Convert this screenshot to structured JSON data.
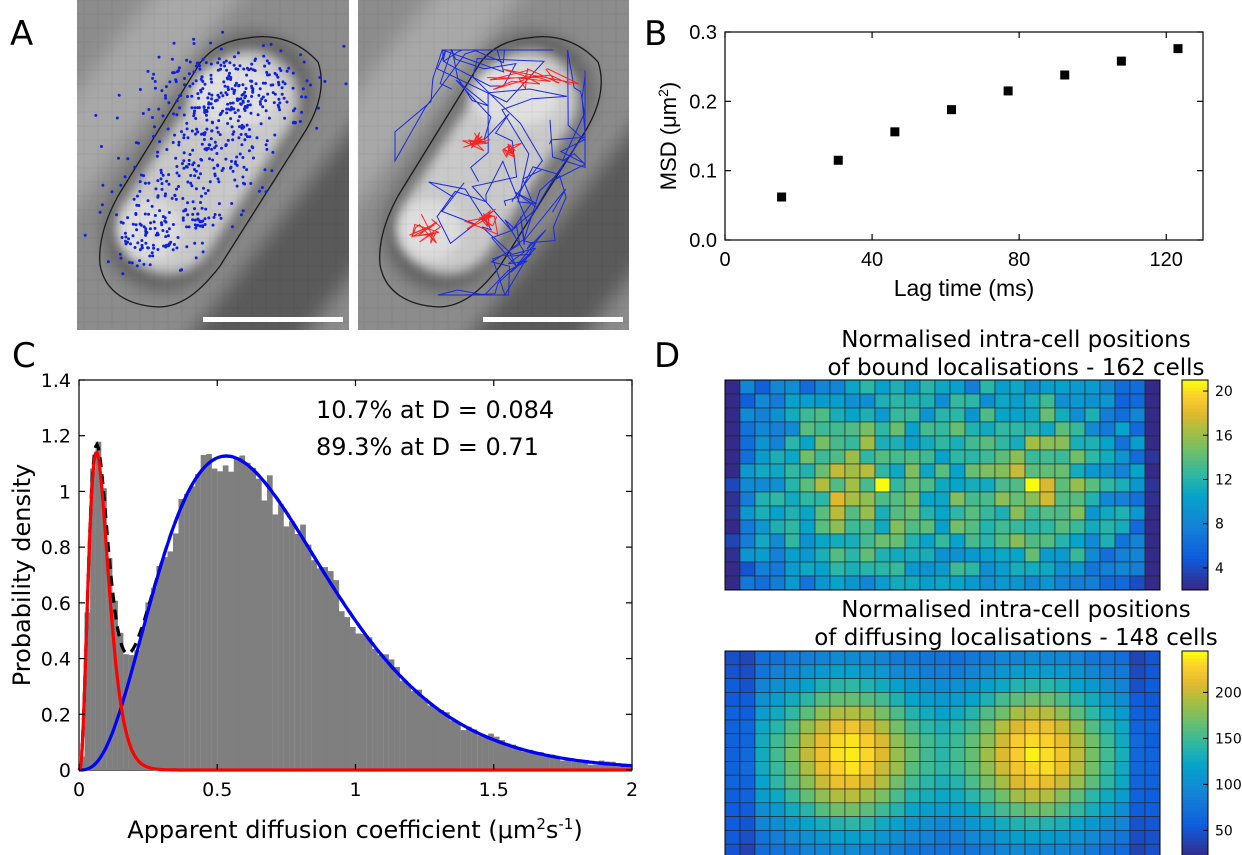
{
  "panels": {
    "a": "A",
    "b": "B",
    "c": "C",
    "d": "D"
  },
  "chart_data": [
    {
      "id": "B",
      "type": "scatter",
      "xlabel": "Lag time (ms)",
      "ylabel_main": "MSD (μm",
      "ylabel_sup": "2",
      "ylabel_close": ")",
      "xlim": [
        0,
        130
      ],
      "ylim": [
        0,
        0.3
      ],
      "xticks": [
        0,
        40,
        80,
        120
      ],
      "xtick_labels": [
        "0",
        "40",
        "80",
        "120"
      ],
      "yticks": [
        0,
        0.1,
        0.2,
        0.3
      ],
      "ytick_labels": [
        "0.0",
        "0.1",
        "0.2",
        "0.3"
      ],
      "x": [
        15.4,
        30.8,
        46.2,
        61.6,
        77.0,
        92.4,
        107.8,
        123.2
      ],
      "y": [
        0.062,
        0.115,
        0.156,
        0.188,
        0.215,
        0.238,
        0.258,
        0.276
      ],
      "marker_color": "#000000"
    },
    {
      "id": "C",
      "type": "bar",
      "xlabel_main": "Apparent diffusion coefficient (μm",
      "xlabel_sup1": "2",
      "xlabel_mid": "s",
      "xlabel_sup2": "-1",
      "xlabel_close": ")",
      "ylabel": "Probability density",
      "xlim": [
        0,
        2
      ],
      "ylim": [
        0,
        1.4
      ],
      "xticks": [
        0,
        0.5,
        1,
        1.5,
        2
      ],
      "xtick_labels": [
        "0",
        "0.5",
        "1",
        "1.5",
        "2"
      ],
      "yticks": [
        0,
        0.2,
        0.4,
        0.6,
        0.8,
        1.0,
        1.2,
        1.4
      ],
      "ytick_labels": [
        "0",
        "0.2",
        "0.4",
        "0.6",
        "0.8",
        "1",
        "1.2",
        "1.4"
      ],
      "annotations": [
        "10.7% at D = 0.084",
        "89.3% at D = 0.71"
      ],
      "hist_color": "#7f7f7f",
      "series": [
        {
          "fraction": 0.107,
          "D": 0.084,
          "color": "#ff0000",
          "style": "solid"
        },
        {
          "fraction": 0.893,
          "D": 0.71,
          "color": "#0000ff",
          "style": "solid"
        },
        {
          "component": "sum",
          "color": "#000000",
          "style": "dashed"
        }
      ]
    },
    {
      "id": "D-top",
      "type": "heatmap",
      "title_line1": "Normalised intra-cell positions",
      "title_line2": "of bound localisations - 162 cells",
      "rows": 15,
      "cols": 29,
      "vmin": 2,
      "vmax": 21,
      "colorbar_ticks": [
        4,
        8,
        12,
        16,
        20
      ],
      "colorbar_labels": [
        "4",
        "8",
        "12",
        "16",
        "20"
      ]
    },
    {
      "id": "D-bottom",
      "type": "heatmap",
      "title_line1": "Normalised intra-cell positions",
      "title_line2": "of diffusing localisations - 148 cells",
      "rows": 15,
      "cols": 29,
      "vmin": 20,
      "vmax": 245,
      "colorbar_ticks": [
        50,
        100,
        150,
        200
      ],
      "colorbar_labels": [
        "50",
        "100",
        "150",
        "200"
      ]
    }
  ]
}
